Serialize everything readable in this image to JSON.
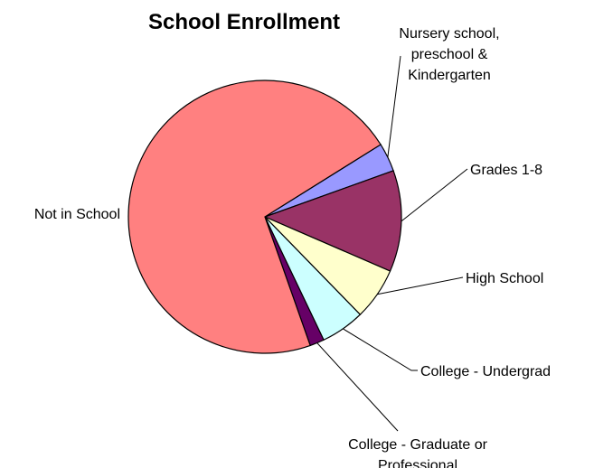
{
  "chart_data": {
    "type": "pie",
    "title": "School Enrollment",
    "slices": [
      {
        "label": "Nursery school, preschool & Kindergarten",
        "value": 3.4,
        "color": "#9999ff",
        "label_lines": [
          "Nursery school,",
          "preschool &",
          "Kindergarten"
        ]
      },
      {
        "label": "Grades 1-8",
        "value": 12.0,
        "color": "#993366",
        "label_lines": [
          "Grades 1-8"
        ]
      },
      {
        "label": "High School",
        "value": 6.2,
        "color": "#ffffcc",
        "label_lines": [
          "High School"
        ]
      },
      {
        "label": "College - Undergrad",
        "value": 5.2,
        "color": "#ccffff",
        "label_lines": [
          "College - Undergrad"
        ]
      },
      {
        "label": "College - Graduate or Professional",
        "value": 1.7,
        "color": "#660066",
        "label_lines": [
          "College - Graduate or",
          "Professional"
        ]
      },
      {
        "label": "Not in School",
        "value": 71.5,
        "color": "#ff8080",
        "label_lines": [
          "Not in School"
        ]
      }
    ]
  }
}
